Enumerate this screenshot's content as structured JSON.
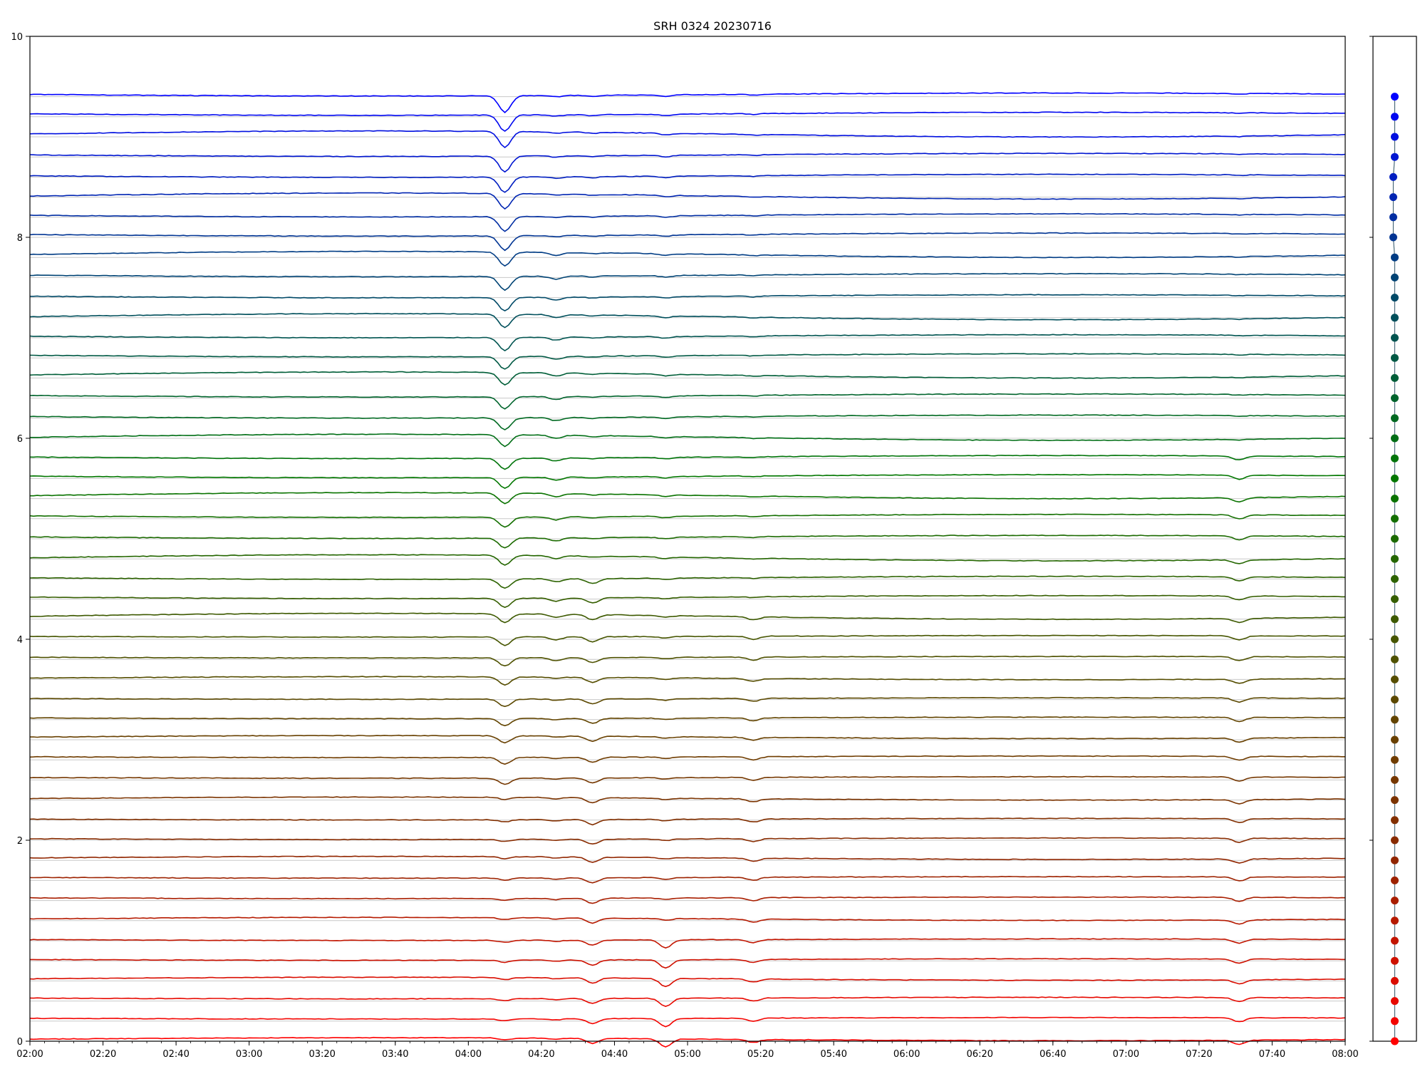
{
  "chart_data": [
    {
      "type": "line",
      "title": "SRH 0324 20230716",
      "xlabel": "",
      "ylabel": "",
      "xlim": [
        "02:00",
        "08:00"
      ],
      "ylim": [
        0,
        10
      ],
      "x_tick_labels": [
        "02:00",
        "02:20",
        "02:40",
        "03:00",
        "03:20",
        "03:40",
        "04:00",
        "04:20",
        "04:40",
        "05:00",
        "05:20",
        "05:40",
        "06:00",
        "06:20",
        "06:40",
        "07:00",
        "07:20",
        "07:40",
        "08:00"
      ],
      "y_tick_labels": [
        "0",
        "2",
        "4",
        "6",
        "8",
        "10"
      ],
      "y_ticks": [
        0,
        2,
        4,
        6,
        8,
        10
      ],
      "grid": "horizontal baseline per trace",
      "n_traces": 48,
      "trace_spacing": 0.2,
      "trace_color_start": "#ff0000",
      "trace_color_end": "#0000ff",
      "baseline_color": "#c8c8c8",
      "dip_times": [
        "04:10",
        "04:24",
        "04:34",
        "04:54",
        "05:18",
        "07:31"
      ],
      "series_description": "48 offset time series, trace k at baseline 0.2*k; colours shift red (bottom) through brown and green to blue (top)"
    },
    {
      "type": "scatter",
      "title": "",
      "n_points": 48,
      "y_spacing": 0.2,
      "ylim": [
        0,
        10
      ],
      "marker_color_start": "#ff0000",
      "marker_color_end": "#0000ff",
      "connector_color": "#4b6a7a"
    }
  ]
}
